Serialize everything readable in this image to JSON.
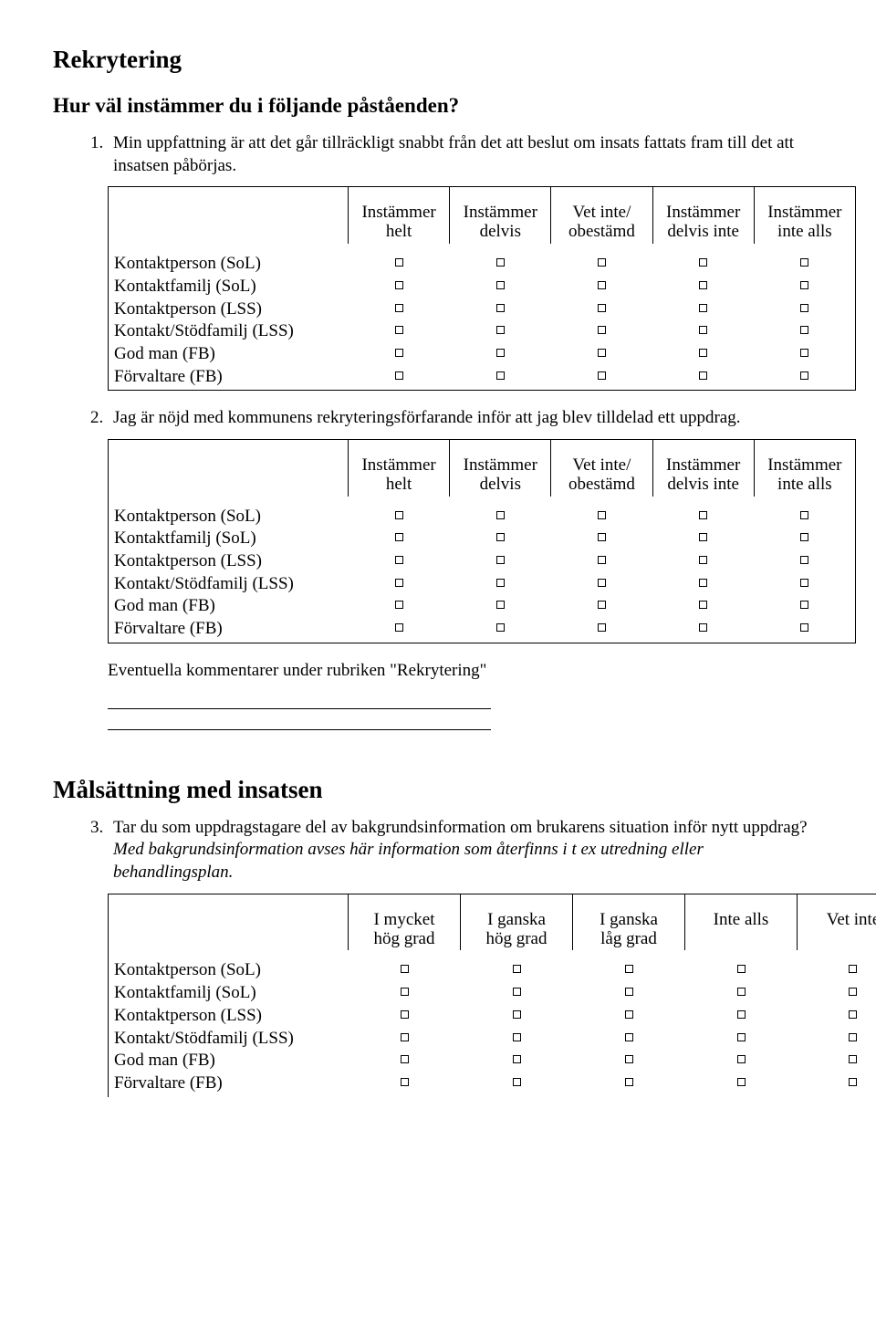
{
  "section1": {
    "heading": "Rekrytering",
    "subhead": "Hur väl instämmer du i följande påståenden?"
  },
  "agree_headers": {
    "c1_l1": "Instämmer",
    "c1_l2": "helt",
    "c2_l1": "Instämmer",
    "c2_l2": "delvis",
    "c3_l1": "Vet inte/",
    "c3_l2": "obestämd",
    "c4_l1": "Instämmer",
    "c4_l2": "delvis inte",
    "c5_l1": "Instämmer",
    "c5_l2": "inte alls"
  },
  "rows": {
    "r1": "Kontaktperson (SoL)",
    "r2": "Kontaktfamilj (SoL)",
    "r3": "Kontaktperson (LSS)",
    "r4": "Kontakt/Stödfamilj (LSS)",
    "r5": "God man (FB)",
    "r6": "Förvaltare (FB)"
  },
  "q1": {
    "text": "Min uppfattning är att det går tillräckligt snabbt från det att beslut om insats fattats fram till det att insatsen påbörjas."
  },
  "q2": {
    "text": "Jag är nöjd med kommunens rekryteringsförfarande inför att jag blev tilldelad ett uppdrag."
  },
  "comments_label": "Eventuella kommentarer under rubriken \"Rekrytering\"",
  "section2": {
    "heading": "Målsättning med insatsen"
  },
  "q3": {
    "text_a": "Tar du som uppdragstagare del av bakgrundsinformation om brukarens situation inför nytt uppdrag? ",
    "text_b": "Med bakgrundsinformation avses här information som återfinns i t ex utredning eller behandlingsplan."
  },
  "extent_headers": {
    "c1_l1": "I mycket",
    "c1_l2": "hög grad",
    "c2_l1": "I ganska",
    "c2_l2": "hög grad",
    "c3_l1": "I ganska",
    "c3_l2": "låg grad",
    "c4_l1": "Inte alls",
    "c4_l2": "",
    "c5_l1": "Vet inte",
    "c5_l2": ""
  }
}
